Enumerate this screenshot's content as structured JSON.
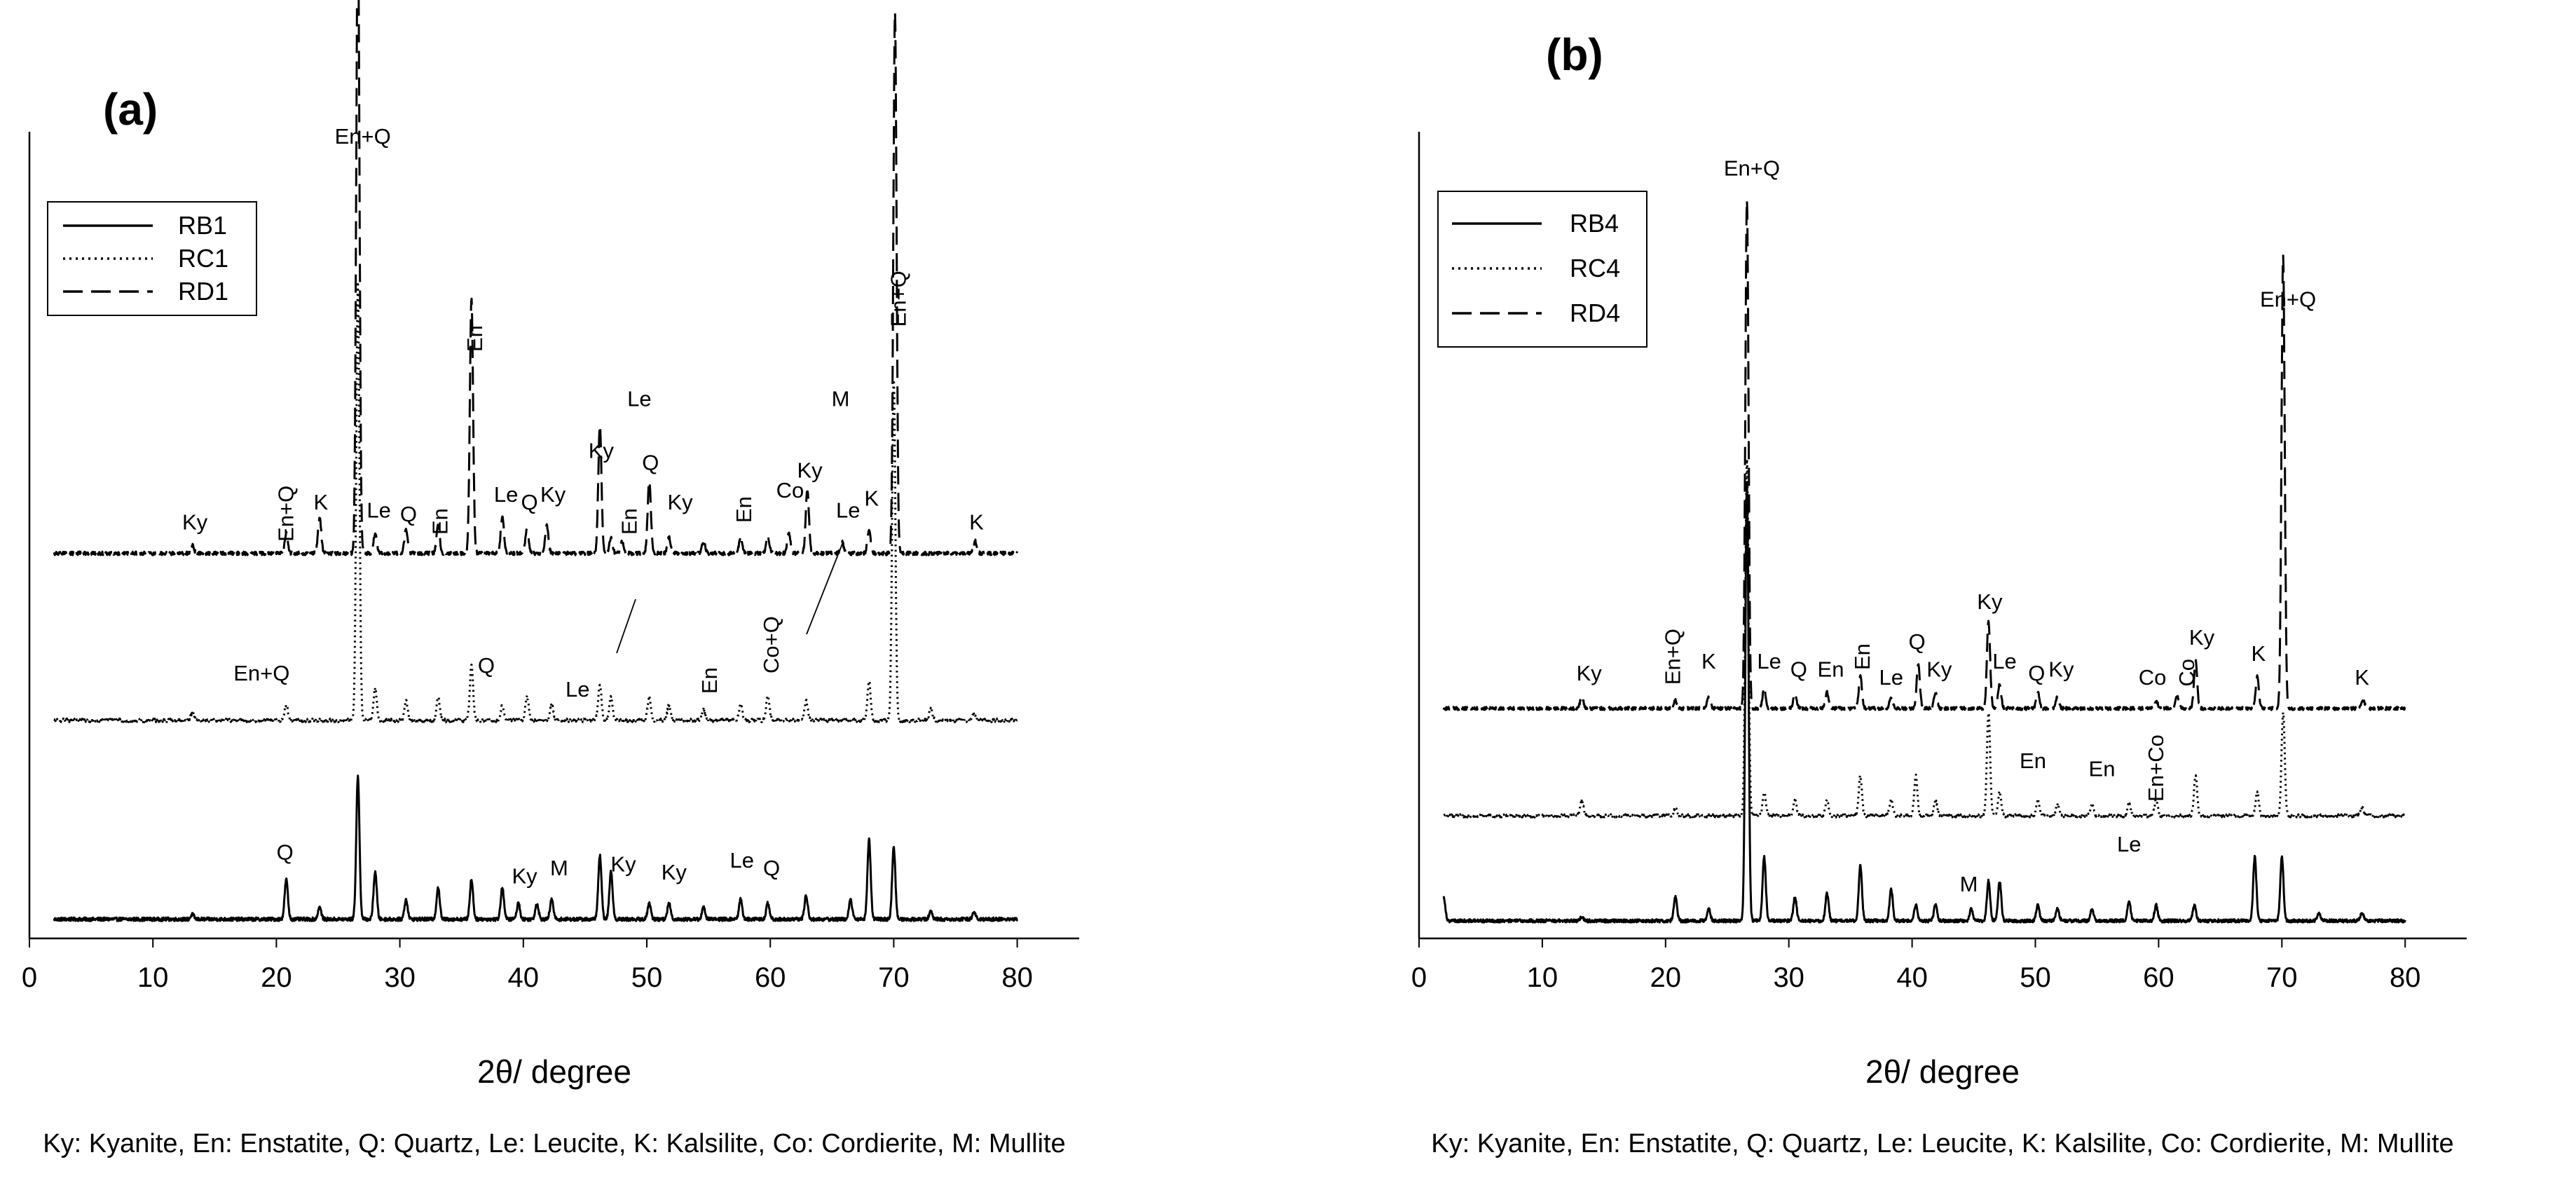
{
  "chart_data": [
    {
      "type": "line",
      "panel_label": "(a)",
      "xlabel": "2θ/ degree",
      "ylabel": "",
      "xlim": [
        0,
        85
      ],
      "xticks": [
        0,
        10,
        20,
        30,
        40,
        50,
        60,
        70,
        80
      ],
      "ylim": [
        0,
        100
      ],
      "legend": {
        "position": "top-left",
        "entries": [
          {
            "label": "RB1",
            "style": "solid"
          },
          {
            "label": "RC1",
            "style": "dotted"
          },
          {
            "label": "RD1",
            "style": "dashed"
          }
        ]
      },
      "caption": "Ky: Kyanite, En: Enstatite, Q: Quartz, Le: Leucite, K: Kalsilite, Co: Cordierite, M: Mullite",
      "series": [
        {
          "name": "RB1",
          "style": "solid",
          "baseline": 1,
          "x_range": [
            2,
            80
          ],
          "peaks": [
            [
              13.2,
              0.6
            ],
            [
              20.8,
              5
            ],
            [
              23.5,
              1.5
            ],
            [
              26.6,
              18
            ],
            [
              28,
              6
            ],
            [
              30.5,
              2.5
            ],
            [
              33.1,
              4
            ],
            [
              35.8,
              5
            ],
            [
              38.3,
              4
            ],
            [
              39.6,
              2
            ],
            [
              41.1,
              2
            ],
            [
              42.3,
              2.5
            ],
            [
              46.2,
              8
            ],
            [
              47.1,
              6
            ],
            [
              50.2,
              2
            ],
            [
              51.8,
              2
            ],
            [
              54.6,
              1.5
            ],
            [
              57.6,
              2.5
            ],
            [
              59.8,
              2
            ],
            [
              62.9,
              3
            ],
            [
              66.5,
              2.5
            ],
            [
              68,
              10
            ],
            [
              70,
              9
            ],
            [
              73,
              1
            ],
            [
              76.5,
              1
            ]
          ],
          "noise": 0.45
        },
        {
          "name": "RC1",
          "style": "dotted",
          "baseline": 26,
          "x_range": [
            2,
            80
          ],
          "peaks": [
            [
              13.2,
              1
            ],
            [
              20.8,
              2
            ],
            [
              26.6,
              55
            ],
            [
              28,
              4
            ],
            [
              30.5,
              2.5
            ],
            [
              33.1,
              3
            ],
            [
              35.8,
              7
            ],
            [
              38.3,
              2
            ],
            [
              40.3,
              3
            ],
            [
              42.3,
              2
            ],
            [
              46.2,
              4.5
            ],
            [
              47.1,
              3
            ],
            [
              50.2,
              3
            ],
            [
              51.8,
              2
            ],
            [
              54.6,
              1.5
            ],
            [
              57.6,
              2
            ],
            [
              59.8,
              3
            ],
            [
              62.9,
              2.5
            ],
            [
              68,
              5
            ],
            [
              70,
              43
            ],
            [
              73,
              1.5
            ],
            [
              76.5,
              1
            ]
          ],
          "noise": 0.45
        },
        {
          "name": "RD1",
          "style": "dashed",
          "baseline": 47,
          "x_range": [
            2,
            80
          ],
          "peaks": [
            [
              13.2,
              1
            ],
            [
              20.8,
              2.5
            ],
            [
              23.5,
              4.5
            ],
            [
              26.6,
              80
            ],
            [
              28,
              2.5
            ],
            [
              30.5,
              3
            ],
            [
              33.1,
              3.5
            ],
            [
              35.8,
              32
            ],
            [
              38.3,
              4.5
            ],
            [
              40.3,
              3
            ],
            [
              41.9,
              3.5
            ],
            [
              46.2,
              16
            ],
            [
              47.1,
              2
            ],
            [
              48,
              1.5
            ],
            [
              50.2,
              9
            ],
            [
              51.8,
              2
            ],
            [
              54.6,
              1.5
            ],
            [
              57.6,
              2
            ],
            [
              59.8,
              2
            ],
            [
              61.5,
              2.5
            ],
            [
              63,
              8
            ],
            [
              65.8,
              1.5
            ],
            [
              68,
              3
            ],
            [
              70.1,
              68
            ],
            [
              76.6,
              1.5
            ]
          ],
          "noise": 0.45
        }
      ],
      "annotations": [
        {
          "text": "En+Q",
          "x": 27,
          "y": 98.5
        },
        {
          "text": "En+Q",
          "x": 70.5,
          "y": 79,
          "rotate": true
        },
        {
          "text": "En",
          "x": 36.2,
          "y": 74,
          "rotate": true
        },
        {
          "text": "Ky",
          "x": 13.4,
          "y": 50
        },
        {
          "text": "En+Q",
          "x": 20.9,
          "y": 52,
          "rotate": true
        },
        {
          "text": "K",
          "x": 23.6,
          "y": 52.5
        },
        {
          "text": "Le",
          "x": 28.3,
          "y": 51.5
        },
        {
          "text": "Q",
          "x": 30.7,
          "y": 51
        },
        {
          "text": "En",
          "x": 33.4,
          "y": 51,
          "rotate": true
        },
        {
          "text": "Le",
          "x": 38.6,
          "y": 53.5
        },
        {
          "text": "Q",
          "x": 40.5,
          "y": 52.5
        },
        {
          "text": "Ky",
          "x": 42.4,
          "y": 53.5
        },
        {
          "text": "Ky",
          "x": 46.3,
          "y": 59
        },
        {
          "text": "Le",
          "x": 49.4,
          "y": 65.5
        },
        {
          "text": "En",
          "x": 48.7,
          "y": 51,
          "rotate": true
        },
        {
          "text": "Q",
          "x": 50.3,
          "y": 57.5
        },
        {
          "text": "Ky",
          "x": 52.7,
          "y": 52.5
        },
        {
          "text": "En",
          "x": 58,
          "y": 52.5,
          "rotate": true
        },
        {
          "text": "Co",
          "x": 61.6,
          "y": 54
        },
        {
          "text": "Ky",
          "x": 63.2,
          "y": 56.5
        },
        {
          "text": "M",
          "x": 65.7,
          "y": 65.5
        },
        {
          "text": "Le",
          "x": 66.3,
          "y": 51.5
        },
        {
          "text": "K",
          "x": 68.2,
          "y": 53
        },
        {
          "text": "K",
          "x": 76.7,
          "y": 50
        },
        {
          "text": "En+Q",
          "x": 18.8,
          "y": 31
        },
        {
          "text": "Q",
          "x": 37,
          "y": 32
        },
        {
          "text": "Le",
          "x": 44.4,
          "y": 29
        },
        {
          "text": "En",
          "x": 55.2,
          "y": 31,
          "rotate": true
        },
        {
          "text": "Co+Q",
          "x": 60.2,
          "y": 35.5,
          "rotate": true
        },
        {
          "text": "Q",
          "x": 20.7,
          "y": 8.5
        },
        {
          "text": "Ky",
          "x": 40.1,
          "y": 5.5
        },
        {
          "text": "M",
          "x": 42.9,
          "y": 6.5
        },
        {
          "text": "Ky",
          "x": 48.1,
          "y": 7
        },
        {
          "text": "Ky",
          "x": 52.2,
          "y": 6
        },
        {
          "text": "Le",
          "x": 57.7,
          "y": 7.5
        },
        {
          "text": "Q",
          "x": 60.1,
          "y": 6.5
        }
      ]
    },
    {
      "type": "line",
      "panel_label": "(b)",
      "xlabel": "2θ/ degree",
      "ylabel": "",
      "xlim": [
        0,
        85
      ],
      "xticks": [
        0,
        10,
        20,
        30,
        40,
        50,
        60,
        70,
        80
      ],
      "ylim": [
        0,
        100
      ],
      "legend": {
        "position": "top-left",
        "entries": [
          {
            "label": "RB4",
            "style": "solid"
          },
          {
            "label": "RC4",
            "style": "dotted"
          },
          {
            "label": "RD4",
            "style": "dashed"
          }
        ]
      },
      "caption": "Ky: Kyanite, En: Enstatite, Q: Quartz, Le: Leucite, K: Kalsilite, Co: Cordierite, M: Mullite",
      "series": [
        {
          "name": "RB4",
          "style": "solid",
          "baseline": 0.8,
          "x_range": [
            2,
            80
          ],
          "peaks": [
            [
              2,
              3
            ],
            [
              13.2,
              0.5
            ],
            [
              20.8,
              3
            ],
            [
              23.5,
              1.5
            ],
            [
              26.6,
              55
            ],
            [
              28,
              8
            ],
            [
              30.5,
              3
            ],
            [
              33.1,
              3.5
            ],
            [
              35.8,
              7
            ],
            [
              38.3,
              4
            ],
            [
              40.3,
              2
            ],
            [
              41.9,
              2
            ],
            [
              44.8,
              1.5
            ],
            [
              46.2,
              5
            ],
            [
              47.1,
              5
            ],
            [
              50.2,
              2
            ],
            [
              51.8,
              1.5
            ],
            [
              54.6,
              1.5
            ],
            [
              57.6,
              2.5
            ],
            [
              59.8,
              2
            ],
            [
              62.9,
              2
            ],
            [
              67.8,
              8
            ],
            [
              70,
              8
            ],
            [
              73,
              1
            ],
            [
              76.5,
              1
            ]
          ],
          "noise": 0.4
        },
        {
          "name": "RC4",
          "style": "dotted",
          "baseline": 14,
          "x_range": [
            2,
            80
          ],
          "peaks": [
            [
              13.2,
              2
            ],
            [
              20.8,
              1
            ],
            [
              26.6,
              45
            ],
            [
              28,
              3
            ],
            [
              30.5,
              2
            ],
            [
              33.1,
              2
            ],
            [
              35.8,
              5
            ],
            [
              38.3,
              2
            ],
            [
              40.3,
              5
            ],
            [
              41.9,
              2
            ],
            [
              46.2,
              13
            ],
            [
              47.1,
              3
            ],
            [
              50.2,
              2
            ],
            [
              51.8,
              1.5
            ],
            [
              54.6,
              1.5
            ],
            [
              57.6,
              1.5
            ],
            [
              59.8,
              2
            ],
            [
              63,
              5
            ],
            [
              68,
              3
            ],
            [
              70.1,
              13
            ],
            [
              76.5,
              1
            ]
          ],
          "noise": 0.4
        },
        {
          "name": "RD4",
          "style": "dashed",
          "baseline": 27.5,
          "x_range": [
            2,
            80
          ],
          "peaks": [
            [
              13.2,
              1.5
            ],
            [
              20.8,
              1
            ],
            [
              23.5,
              1.5
            ],
            [
              26.6,
              64
            ],
            [
              28,
              2.5
            ],
            [
              30.5,
              2
            ],
            [
              33.1,
              2
            ],
            [
              35.8,
              4
            ],
            [
              38.3,
              1.5
            ],
            [
              40.5,
              5.5
            ],
            [
              41.9,
              2
            ],
            [
              46.2,
              11
            ],
            [
              47.1,
              3
            ],
            [
              50.2,
              2
            ],
            [
              51.8,
              1.5
            ],
            [
              59.8,
              1
            ],
            [
              61.5,
              1.5
            ],
            [
              63,
              6
            ],
            [
              68,
              4
            ],
            [
              70.1,
              57
            ],
            [
              76.6,
              1
            ]
          ],
          "noise": 0.4
        }
      ],
      "annotations": [
        {
          "text": "En+Q",
          "x": 27,
          "y": 94.5
        },
        {
          "text": "En+Q",
          "x": 70.5,
          "y": 78
        },
        {
          "text": "Ky",
          "x": 13.8,
          "y": 31
        },
        {
          "text": "En+Q",
          "x": 20.7,
          "y": 34,
          "rotate": true
        },
        {
          "text": "K",
          "x": 23.5,
          "y": 32.5
        },
        {
          "text": "Le",
          "x": 28.4,
          "y": 32.5
        },
        {
          "text": "Q",
          "x": 30.8,
          "y": 31.5
        },
        {
          "text": "En",
          "x": 33.4,
          "y": 31.5
        },
        {
          "text": "En",
          "x": 36.1,
          "y": 34,
          "rotate": true
        },
        {
          "text": "Le",
          "x": 38.3,
          "y": 30.5
        },
        {
          "text": "Q",
          "x": 40.4,
          "y": 35
        },
        {
          "text": "Ky",
          "x": 42.2,
          "y": 31.5
        },
        {
          "text": "Ky",
          "x": 46.3,
          "y": 40
        },
        {
          "text": "Le",
          "x": 47.5,
          "y": 32.5
        },
        {
          "text": "Q",
          "x": 50.1,
          "y": 31
        },
        {
          "text": "Ky",
          "x": 52.1,
          "y": 31.5
        },
        {
          "text": "Co",
          "x": 59.5,
          "y": 30.5
        },
        {
          "text": "Co",
          "x": 62.4,
          "y": 32,
          "rotate": true
        },
        {
          "text": "Ky",
          "x": 63.5,
          "y": 35.5
        },
        {
          "text": "K",
          "x": 68.1,
          "y": 33.5
        },
        {
          "text": "K",
          "x": 76.5,
          "y": 30.5
        },
        {
          "text": "En",
          "x": 49.8,
          "y": 20
        },
        {
          "text": "En",
          "x": 55.4,
          "y": 19
        },
        {
          "text": "En+Co",
          "x": 59.9,
          "y": 20,
          "rotate": true
        },
        {
          "text": "M",
          "x": 44.6,
          "y": 4.5
        },
        {
          "text": "Le",
          "x": 57.6,
          "y": 9.5
        }
      ]
    }
  ]
}
